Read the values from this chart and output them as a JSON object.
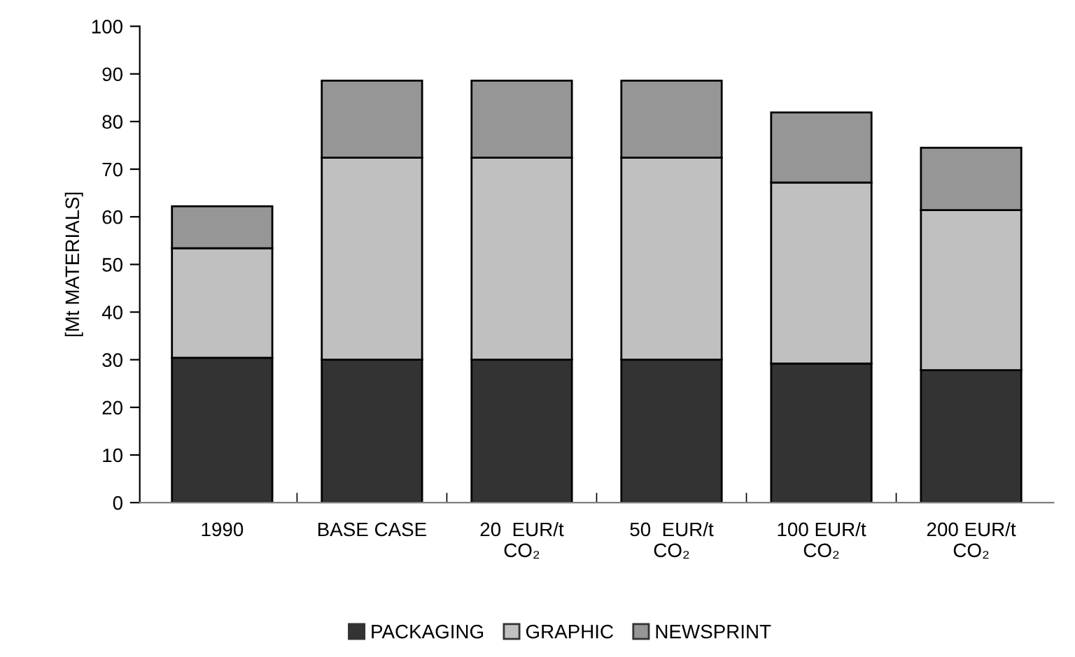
{
  "chart_data": {
    "type": "bar",
    "stacked": true,
    "ylabel": "[Mt MATERIALS]",
    "categories": [
      "1990",
      "BASE CASE",
      "20  EUR/t\nCO₂",
      "50  EUR/t\nCO₂",
      "100 EUR/t\nCO₂",
      "200 EUR/t\nCO₂"
    ],
    "series": [
      {
        "name": "PACKAGING",
        "color": "#333333",
        "values": [
          30.4,
          30.0,
          30.0,
          30.0,
          29.2,
          27.8
        ]
      },
      {
        "name": "GRAPHIC",
        "color": "#c0c0c0",
        "values": [
          23.0,
          42.4,
          42.4,
          42.4,
          38.0,
          33.6
        ]
      },
      {
        "name": "NEWSPRINT",
        "color": "#969696",
        "values": [
          8.8,
          16.2,
          16.2,
          16.2,
          14.7,
          13.1
        ]
      }
    ],
    "ylim": [
      0,
      100
    ],
    "yticks": [
      0,
      10,
      20,
      30,
      40,
      50,
      60,
      70,
      80,
      90,
      100
    ],
    "grid": false,
    "legend": "bottom"
  }
}
